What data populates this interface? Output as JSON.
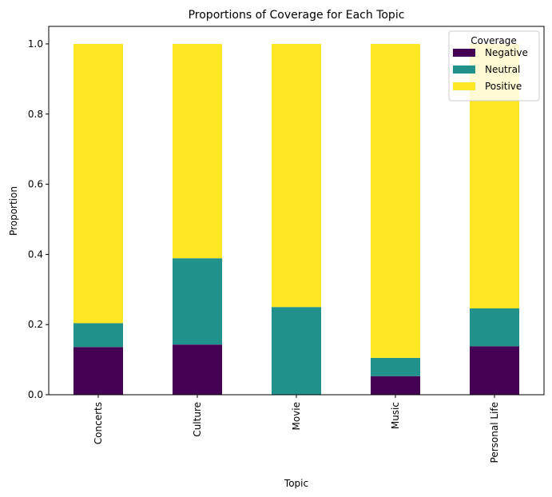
{
  "chart_data": {
    "type": "bar",
    "stacked": true,
    "title": "Proportions of Coverage for Each Topic",
    "xlabel": "Topic",
    "ylabel": "Proportion",
    "ylim": [
      0,
      1.05
    ],
    "yticks": [
      "0.0",
      "0.2",
      "0.4",
      "0.6",
      "0.8",
      "1.0"
    ],
    "categories": [
      "Concerts",
      "Culture",
      "Movie",
      "Music",
      "Personal Life"
    ],
    "series": [
      {
        "name": "Negative",
        "color": "#440154",
        "values": [
          0.136,
          0.143,
          0.0,
          0.053,
          0.138
        ]
      },
      {
        "name": "Neutral",
        "color": "#21918c",
        "values": [
          0.068,
          0.246,
          0.25,
          0.052,
          0.108
        ]
      },
      {
        "name": "Positive",
        "color": "#fde725",
        "values": [
          0.796,
          0.611,
          0.75,
          0.895,
          0.754
        ]
      }
    ],
    "legend": {
      "title": "Coverage",
      "placement": "top-right"
    },
    "grid": false
  }
}
